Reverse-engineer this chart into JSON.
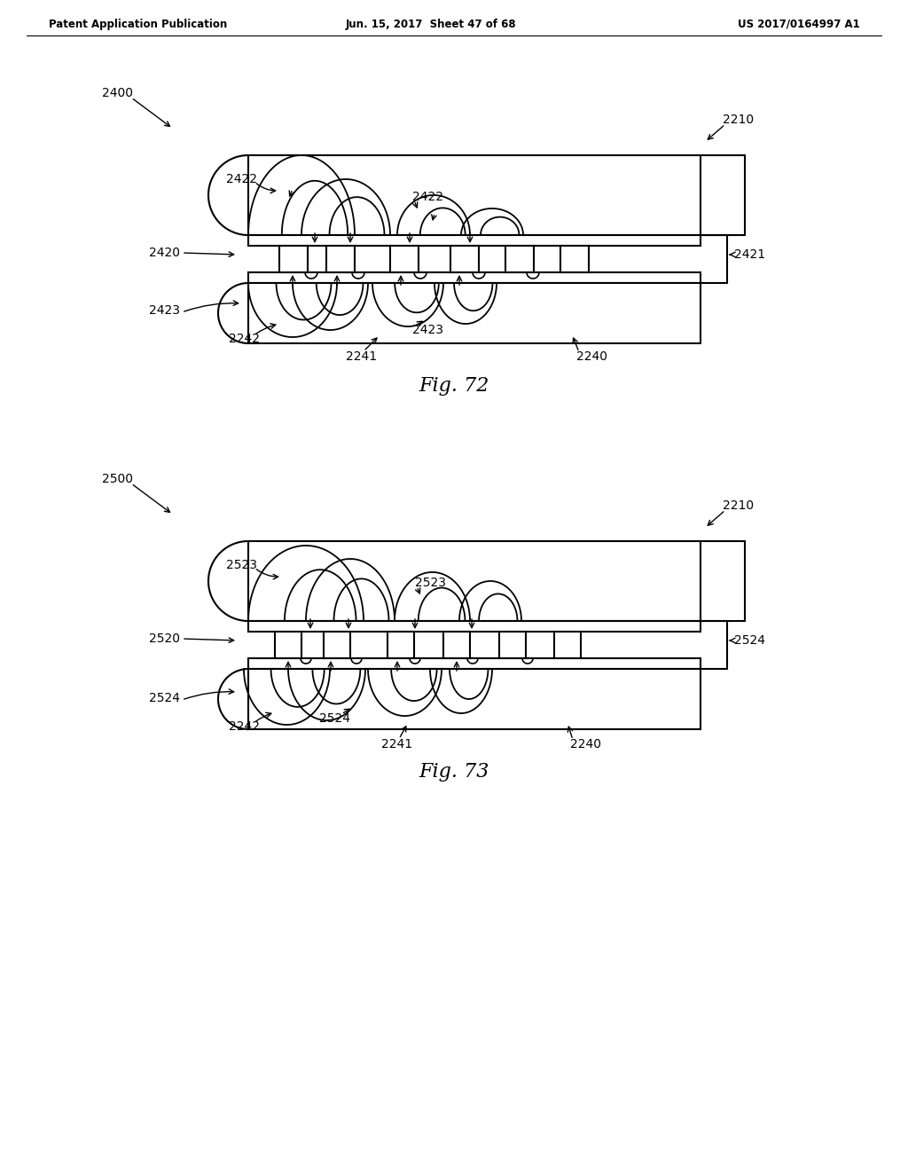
{
  "header_left": "Patent Application Publication",
  "header_center": "Jun. 15, 2017  Sheet 47 of 68",
  "header_right": "US 2017/0164997 A1",
  "fig72_label": "Fig. 72",
  "fig73_label": "Fig. 73",
  "bg_color": "#ffffff",
  "line_color": "#000000",
  "text_color": "#000000"
}
